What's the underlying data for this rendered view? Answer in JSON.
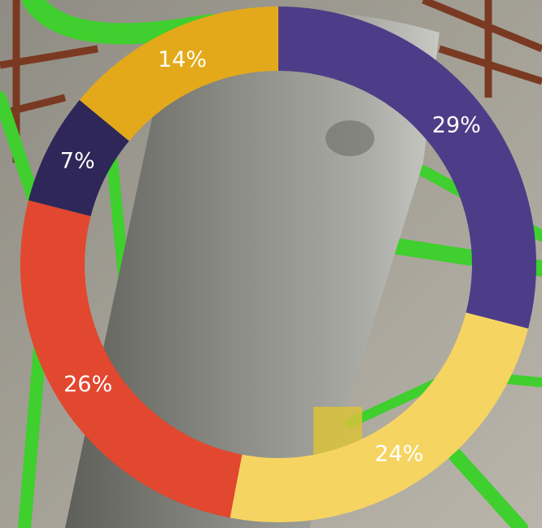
{
  "chart_data": {
    "type": "donut",
    "values": [
      29,
      24,
      26,
      7,
      14
    ],
    "value_labels": [
      "29%",
      "24%",
      "26%",
      "7%",
      "14%"
    ],
    "colors": [
      "#4d3d88",
      "#f6d462",
      "#e2472f",
      "#2f2759",
      "#e3a91a"
    ]
  }
}
